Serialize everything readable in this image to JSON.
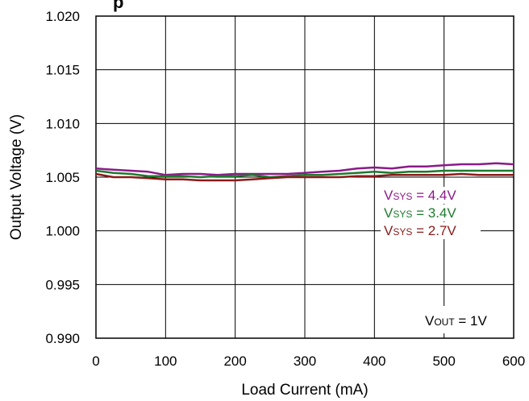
{
  "chart_data": {
    "type": "line",
    "title": "p",
    "xlabel": "Load Current (mA)",
    "ylabel": "Output Voltage (V)",
    "xlim": [
      0,
      600
    ],
    "ylim": [
      0.99,
      1.02
    ],
    "xticks": [
      "0",
      "100",
      "200",
      "300",
      "400",
      "500",
      "600"
    ],
    "yticks": [
      "0.990",
      "0.995",
      "1.000",
      "1.005",
      "1.010",
      "1.015",
      "1.020"
    ],
    "grid": true,
    "annotation": {
      "main": "V",
      "sub": "OUT",
      "rest": " = 1V"
    },
    "series": [
      {
        "name": "VSYS = 4.4V",
        "label": {
          "main": "V",
          "sub": "SYS",
          "rest": " = 4.4V"
        },
        "color": "#8B1A89",
        "x": [
          0,
          25,
          50,
          75,
          100,
          125,
          150,
          175,
          200,
          225,
          250,
          275,
          300,
          325,
          350,
          375,
          400,
          425,
          450,
          475,
          500,
          525,
          550,
          575,
          600
        ],
        "y": [
          1.0058,
          1.0057,
          1.0056,
          1.0055,
          1.0052,
          1.0053,
          1.0053,
          1.0052,
          1.0053,
          1.0053,
          1.0053,
          1.0053,
          1.0054,
          1.0055,
          1.0056,
          1.0058,
          1.0059,
          1.0058,
          1.006,
          1.006,
          1.0061,
          1.0062,
          1.0062,
          1.0063,
          1.0062
        ]
      },
      {
        "name": "VSYS = 3.4V",
        "label": {
          "main": "V",
          "sub": "SYS",
          "rest": " = 3.4V"
        },
        "color": "#1E7A2E",
        "x": [
          0,
          25,
          50,
          75,
          100,
          125,
          150,
          175,
          200,
          225,
          250,
          275,
          300,
          325,
          350,
          375,
          400,
          425,
          450,
          475,
          500,
          525,
          550,
          575,
          600
        ],
        "y": [
          1.0056,
          1.0054,
          1.0053,
          1.0051,
          1.0051,
          1.0051,
          1.005,
          1.0051,
          1.0051,
          1.0052,
          1.005,
          1.0051,
          1.0052,
          1.0052,
          1.0053,
          1.0054,
          1.0055,
          1.0054,
          1.0055,
          1.0055,
          1.0056,
          1.0056,
          1.0056,
          1.0056,
          1.0056
        ]
      },
      {
        "name": "VSYS = 2.7V",
        "label": {
          "main": "V",
          "sub": "SYS",
          "rest": " = 2.7V"
        },
        "color": "#8B1A1A",
        "x": [
          0,
          25,
          50,
          75,
          100,
          125,
          150,
          175,
          200,
          225,
          250,
          275,
          300,
          325,
          350,
          375,
          400,
          425,
          450,
          475,
          500,
          525,
          550,
          575,
          600
        ],
        "y": [
          1.0053,
          1.005,
          1.005,
          1.0049,
          1.0048,
          1.0048,
          1.0047,
          1.0047,
          1.0047,
          1.0048,
          1.0049,
          1.005,
          1.005,
          1.005,
          1.005,
          1.0051,
          1.0051,
          1.0052,
          1.0052,
          1.0052,
          1.0052,
          1.0053,
          1.0052,
          1.0052,
          1.0052
        ]
      }
    ]
  }
}
